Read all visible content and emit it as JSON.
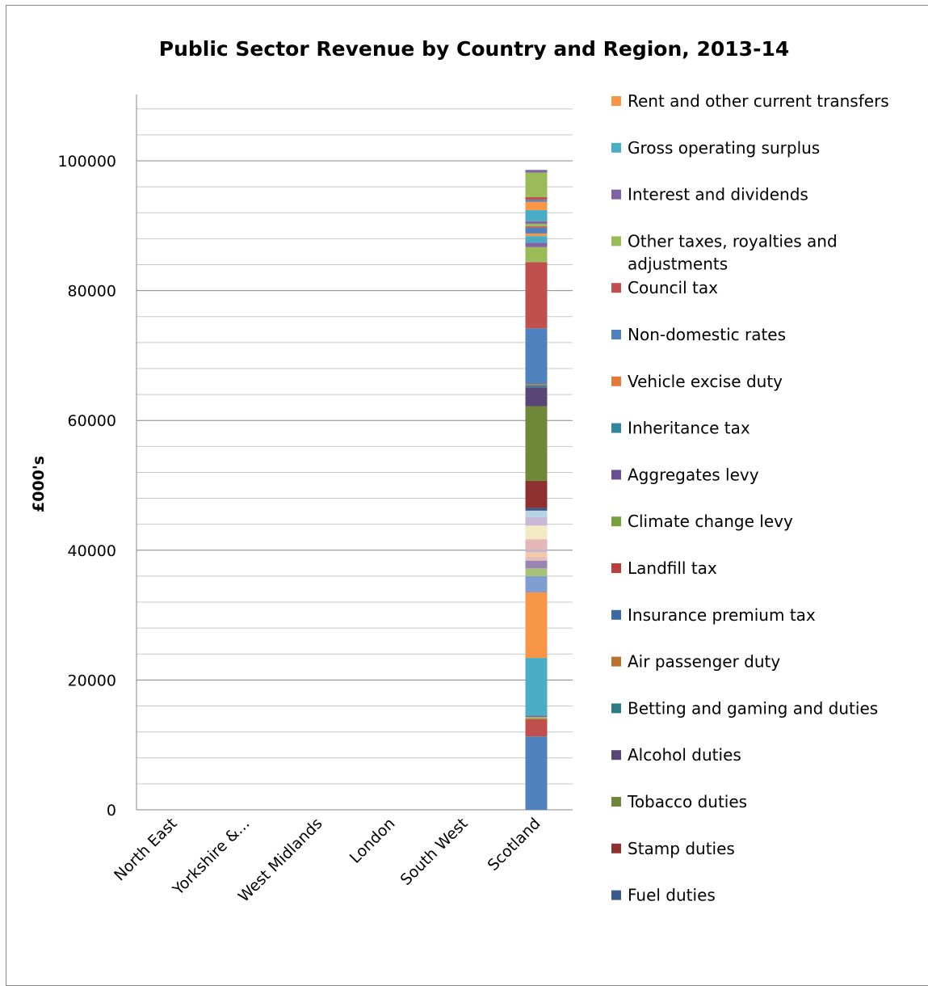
{
  "chart_data": {
    "type": "bar",
    "stacked": true,
    "title": "Public Sector Revenue by Country and Region, 2013-14",
    "xlabel": "",
    "ylabel": "£000's",
    "ylim": [
      0,
      100000
    ],
    "yticks": [
      "0",
      "20000",
      "40000",
      "60000",
      "80000",
      "100000"
    ],
    "grid": true,
    "legend_position": "right",
    "categories": [
      "North East",
      "Yorkshire &...",
      "West Midlands",
      "London",
      "South West",
      "Scotland"
    ],
    "segment_colors": [
      "#4f81bd",
      "#c0504d",
      "#9bbb59",
      "#8064a2",
      "#4bacc6",
      "#f79646",
      "#7f9dcf",
      "#a6c279",
      "#9a85b3",
      "#e4bfbc",
      "#f5c7a3",
      "#f0c9a7",
      "#c4b7d6",
      "#e3b9b8",
      "#f3e9c4",
      "#c7b8d6",
      "#b7d3e1",
      "#375b8a",
      "#8e3231",
      "#6e8739",
      "#5a4676",
      "#31859c",
      "#b66d31",
      "#4f81bd",
      "#c0504d",
      "#9bbb59",
      "#8064a2",
      "#4bacc6",
      "#f79646",
      "#4f81bd",
      "#c0504d",
      "#9bbb59",
      "#8064a2",
      "#4bacc6",
      "#f79646"
    ],
    "scotland_segments": [
      11300,
      2700,
      300,
      200,
      8900,
      10100,
      2500,
      1200,
      1200,
      600,
      400,
      300,
      300,
      1700,
      2100,
      1300,
      1000,
      400,
      4200,
      11500,
      2900,
      300,
      200,
      8600,
      10200,
      2300,
      700,
      1000,
      400,
      900,
      200,
      400,
      400,
      1700,
      1300,
      300,
      400,
      3800,
      400
    ],
    "legend": [
      {
        "label": "Rent and other current transfers",
        "color": "#f79646"
      },
      {
        "label": "Gross operating surplus",
        "color": "#4bacc6"
      },
      {
        "label": "Interest and dividends",
        "color": "#8064a2"
      },
      {
        "label": "Other taxes,  royalties and adjustments",
        "color": "#9bbb59"
      },
      {
        "label": "Council tax",
        "color": "#c0504d"
      },
      {
        "label": "Non-domestic rates",
        "color": "#4f81bd"
      },
      {
        "label": "Vehicle excise duty",
        "color": "#e07b39"
      },
      {
        "label": "Inheritance tax",
        "color": "#31859c"
      },
      {
        "label": "Aggregates levy",
        "color": "#6a4f90"
      },
      {
        "label": "Climate change levy",
        "color": "#77a03f"
      },
      {
        "label": "Landfill tax",
        "color": "#b8403d"
      },
      {
        "label": "Insurance premium tax",
        "color": "#3d6aa7"
      },
      {
        "label": "Air passenger duty",
        "color": "#b9732e"
      },
      {
        "label": "Betting and gaming and duties",
        "color": "#2e7b86"
      },
      {
        "label": "Alcohol duties",
        "color": "#5a4676"
      },
      {
        "label": "Tobacco duties",
        "color": "#6e8739"
      },
      {
        "label": "Stamp duties",
        "color": "#8e3231"
      },
      {
        "label": "Fuel duties",
        "color": "#375b8a"
      }
    ]
  }
}
